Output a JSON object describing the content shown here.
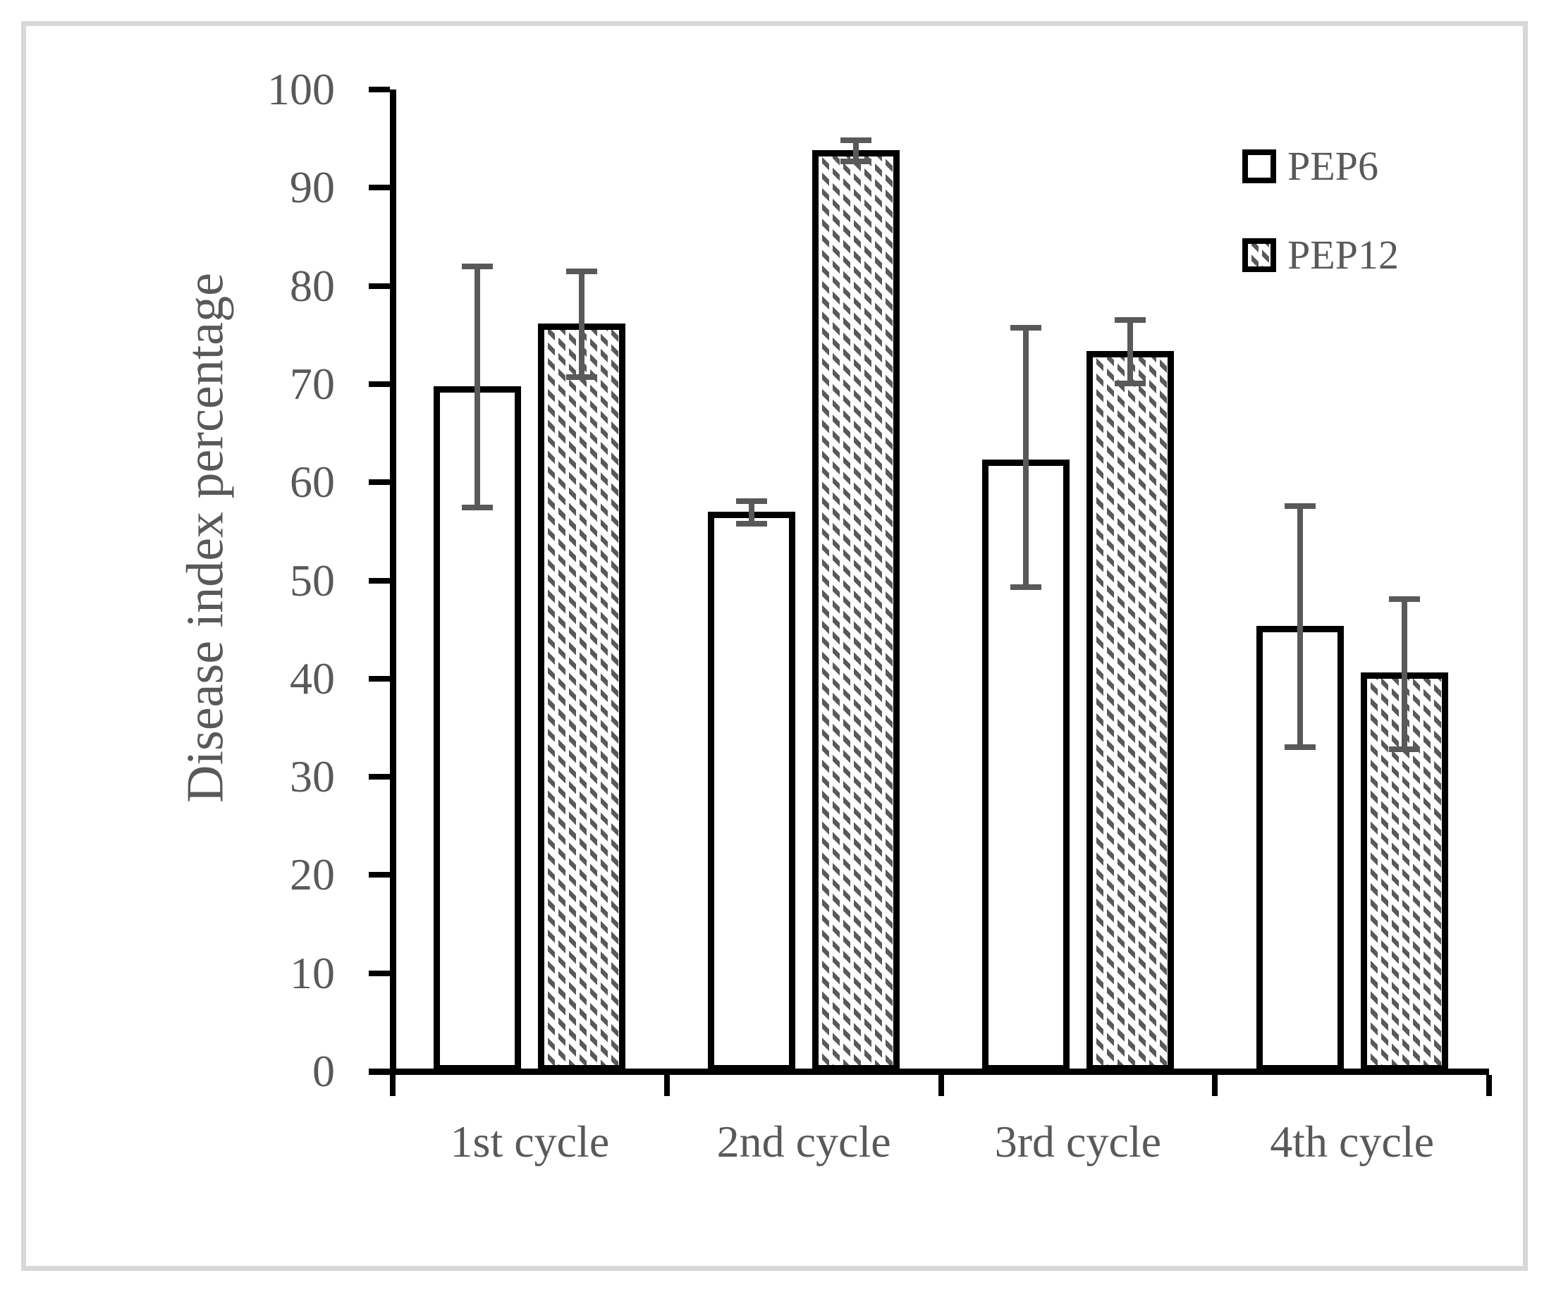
{
  "chart_data": {
    "type": "bar",
    "title": "",
    "xlabel": "",
    "ylabel": "Disease index percentage",
    "categories": [
      "1st cycle",
      "2nd cycle",
      "3rd cycle",
      "4th cycle"
    ],
    "series": [
      {
        "name": "PEP6",
        "pattern": "none",
        "values": [
          69.8,
          57.0,
          62.3,
          45.4
        ],
        "error_low": [
          57.4,
          55.8,
          49.3,
          33.0
        ],
        "error_high": [
          82.0,
          58.1,
          75.7,
          57.6
        ]
      },
      {
        "name": "PEP12",
        "pattern": "diagonal-hatch",
        "values": [
          76.2,
          93.8,
          73.4,
          40.6
        ],
        "error_low": [
          70.7,
          92.7,
          70.1,
          32.8
        ],
        "error_high": [
          81.5,
          94.8,
          76.5,
          48.1
        ]
      }
    ],
    "ylim": [
      0,
      100
    ],
    "yticks": [
      0,
      10,
      20,
      30,
      40,
      50,
      60,
      70,
      80,
      90,
      100
    ],
    "grid": false,
    "legend_position": "top-right",
    "colors": {
      "background": "#ffffff",
      "frame_border": "#d8d8d8",
      "axis_line": "#000000",
      "bar_outline": "#000000",
      "bar_fill": "#ffffff",
      "hatch": "#595959",
      "error_bar": "#595959",
      "text": "#595959"
    }
  }
}
